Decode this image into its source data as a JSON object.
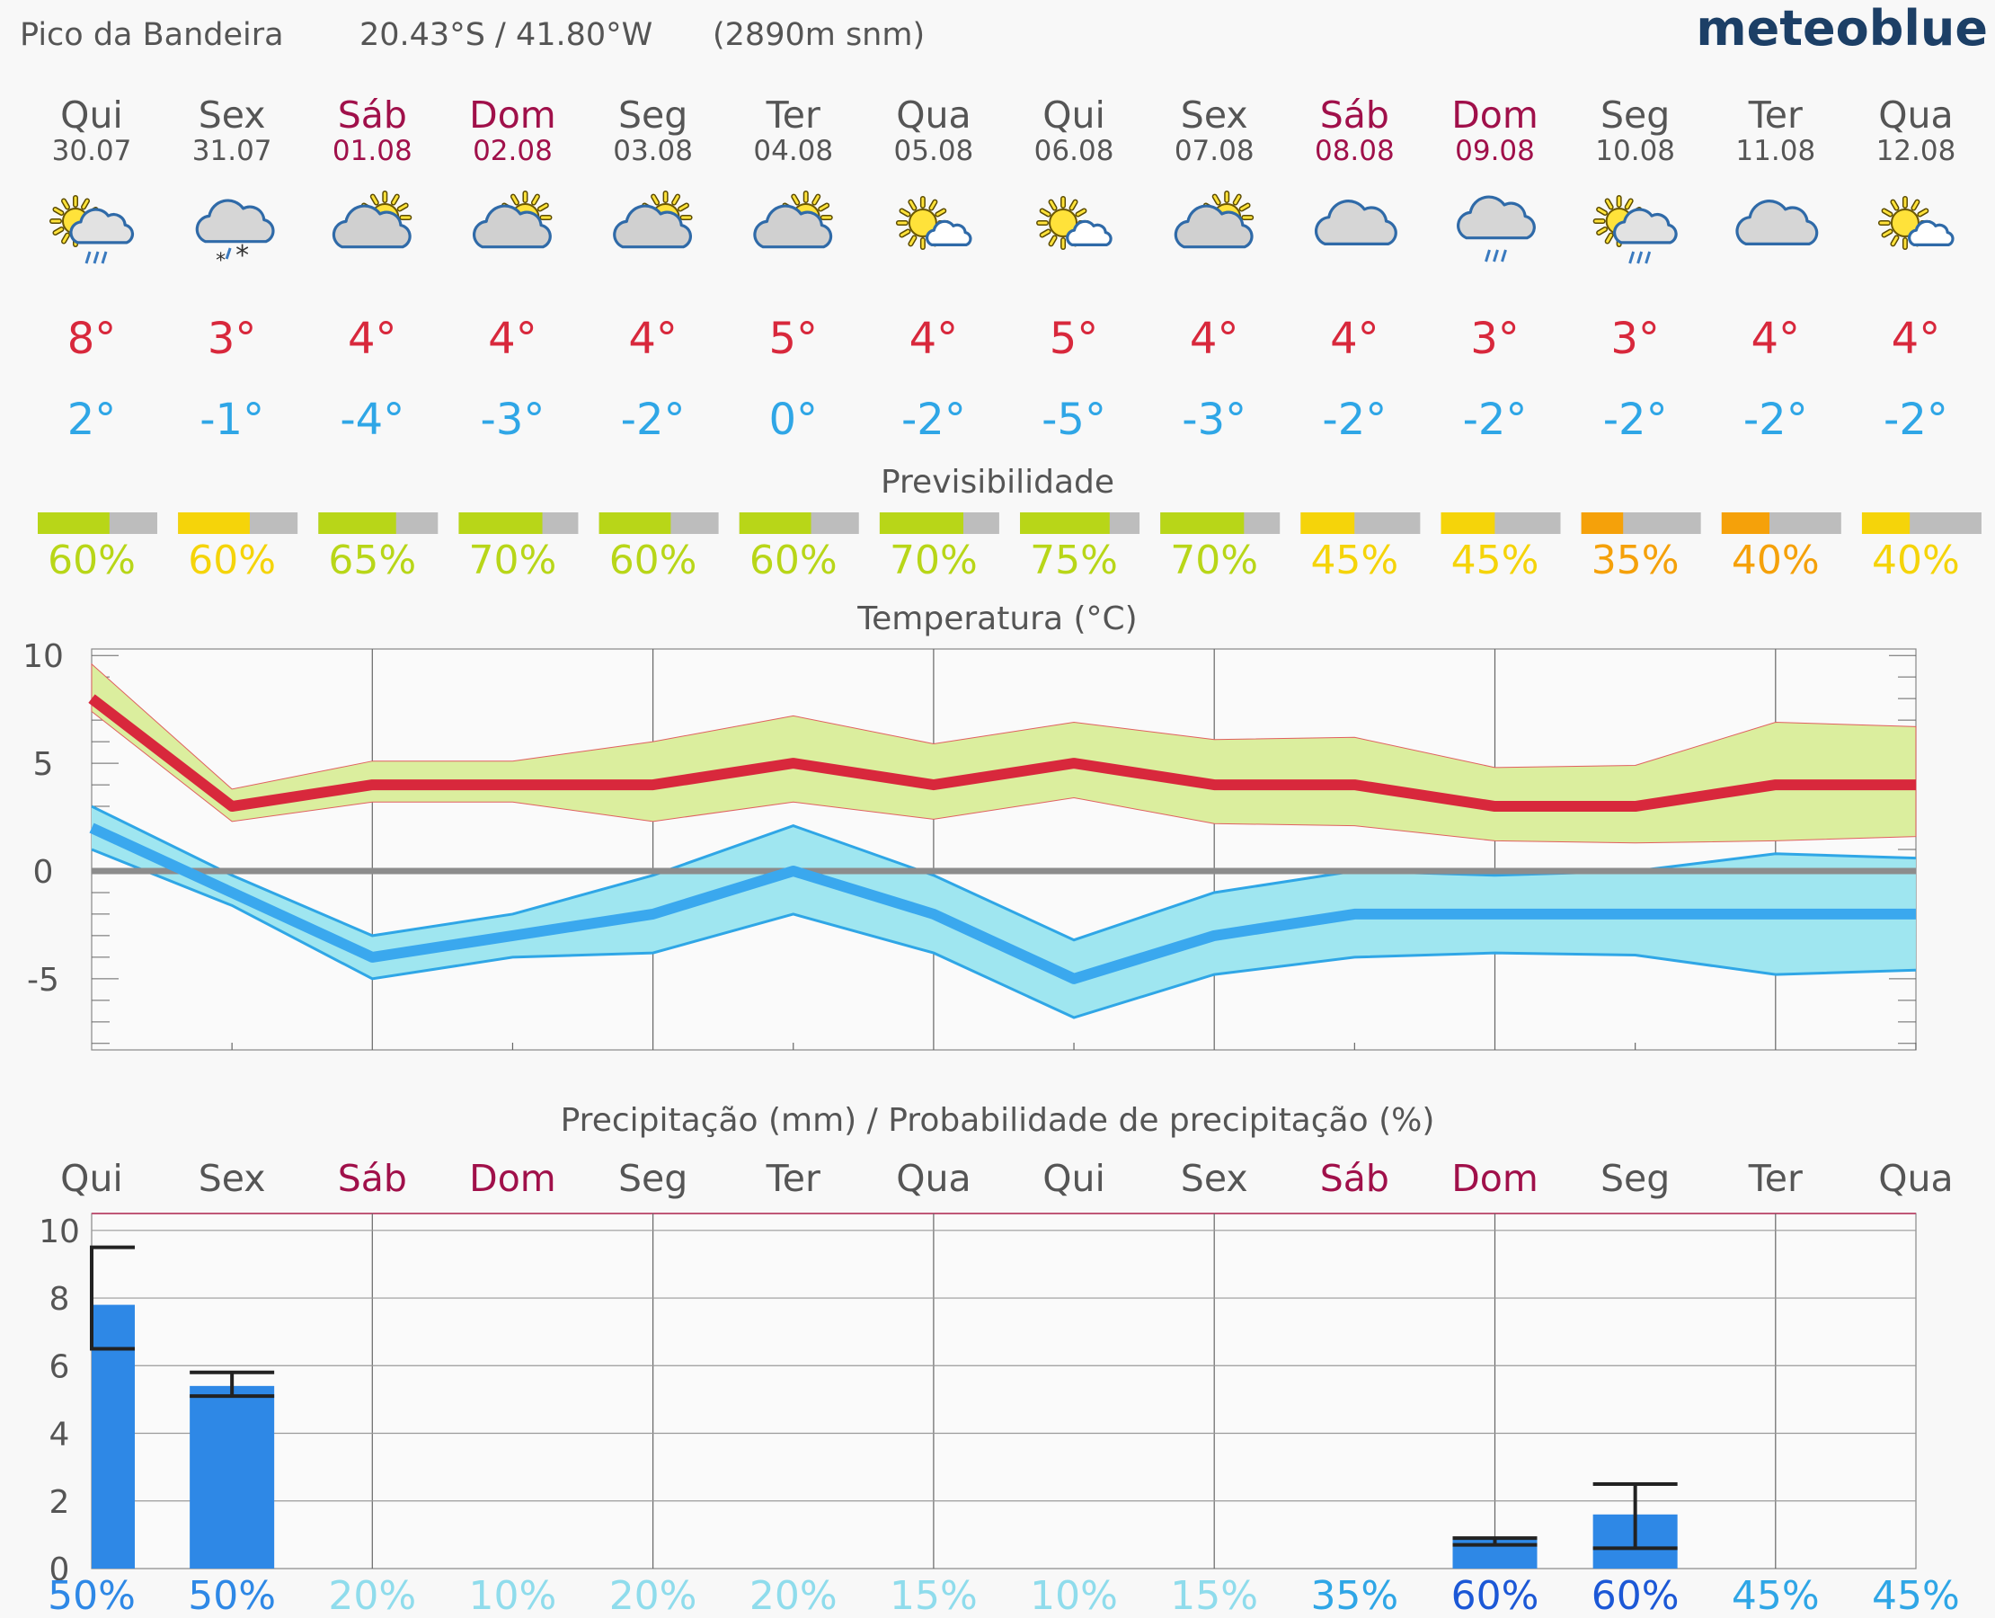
{
  "header": {
    "location": "Pico da Bandeira",
    "coordinates": "20.43°S / 41.80°W",
    "altitude": "(2890m snm)",
    "brand": "meteoblue"
  },
  "colors": {
    "weekday": "#555555",
    "weekend": "#a0104a",
    "temp_max": "#d8283c",
    "temp_min": "#2fa6e6",
    "precip_bar": "#2e88e6",
    "brand": "#1c3f66"
  },
  "days": [
    {
      "name": "Qui",
      "date": "30.07",
      "weekend": false,
      "icon": "sun-cloud-rain-icon",
      "tmax": "8°",
      "tmin": "2°"
    },
    {
      "name": "Sex",
      "date": "31.07",
      "weekend": false,
      "icon": "cloud-sleet-icon",
      "tmax": "3°",
      "tmin": "-1°"
    },
    {
      "name": "Sáb",
      "date": "01.08",
      "weekend": true,
      "icon": "sun-behind-cloud-icon",
      "tmax": "4°",
      "tmin": "-4°"
    },
    {
      "name": "Dom",
      "date": "02.08",
      "weekend": true,
      "icon": "sun-behind-cloud-icon",
      "tmax": "4°",
      "tmin": "-3°"
    },
    {
      "name": "Seg",
      "date": "03.08",
      "weekend": false,
      "icon": "sun-behind-cloud-icon",
      "tmax": "4°",
      "tmin": "-2°"
    },
    {
      "name": "Ter",
      "date": "04.08",
      "weekend": false,
      "icon": "sun-behind-cloud-icon",
      "tmax": "5°",
      "tmin": "0°"
    },
    {
      "name": "Qua",
      "date": "05.08",
      "weekend": false,
      "icon": "sun-small-cloud-icon",
      "tmax": "4°",
      "tmin": "-2°"
    },
    {
      "name": "Qui",
      "date": "06.08",
      "weekend": false,
      "icon": "sun-small-cloud-icon",
      "tmax": "5°",
      "tmin": "-5°"
    },
    {
      "name": "Sex",
      "date": "07.08",
      "weekend": false,
      "icon": "sun-behind-cloud-icon",
      "tmax": "4°",
      "tmin": "-3°"
    },
    {
      "name": "Sáb",
      "date": "08.08",
      "weekend": true,
      "icon": "cloud-icon",
      "tmax": "4°",
      "tmin": "-2°"
    },
    {
      "name": "Dom",
      "date": "09.08",
      "weekend": true,
      "icon": "cloud-rain-icon",
      "tmax": "3°",
      "tmin": "-2°"
    },
    {
      "name": "Seg",
      "date": "10.08",
      "weekend": false,
      "icon": "sun-cloud-rain-icon",
      "tmax": "3°",
      "tmin": "-2°"
    },
    {
      "name": "Ter",
      "date": "11.08",
      "weekend": false,
      "icon": "cloud-icon",
      "tmax": "4°",
      "tmin": "-2°"
    },
    {
      "name": "Qua",
      "date": "12.08",
      "weekend": false,
      "icon": "sun-small-cloud-icon",
      "tmax": "4°",
      "tmin": "-2°"
    }
  ],
  "predictability": {
    "title": "Previsibilidade",
    "values": [
      60,
      60,
      65,
      70,
      60,
      60,
      70,
      75,
      70,
      45,
      45,
      35,
      40,
      40
    ],
    "labels": [
      "60%",
      "60%",
      "65%",
      "70%",
      "60%",
      "60%",
      "70%",
      "75%",
      "70%",
      "45%",
      "45%",
      "35%",
      "40%",
      "40%"
    ],
    "colors": [
      "#b8d618",
      "#f5d40a",
      "#b8d618",
      "#b8d618",
      "#b8d618",
      "#b8d618",
      "#b8d618",
      "#b8d618",
      "#b8d618",
      "#f5d40a",
      "#f5d40a",
      "#f5a10a",
      "#f5a10a",
      "#f5d40a"
    ]
  },
  "chart_data": [
    {
      "type": "line",
      "title": "Temperatura (°C)",
      "ylim": [
        -8.3,
        10.3
      ],
      "yticks": [
        10,
        5,
        0,
        -5
      ],
      "ytick_labels": [
        "10",
        "5",
        "0",
        "-5"
      ],
      "grid": true,
      "series": [
        {
          "values": [
            8,
            3,
            4,
            4,
            4,
            5,
            4,
            5,
            4,
            4,
            3,
            3,
            4,
            4
          ],
          "band_upper": [
            9.6,
            3.8,
            5.1,
            5.1,
            6.0,
            7.2,
            5.9,
            6.9,
            6.1,
            6.2,
            4.8,
            4.9,
            6.9,
            6.7
          ],
          "band_lower": [
            7.4,
            2.3,
            3.2,
            3.2,
            2.3,
            3.2,
            2.4,
            3.4,
            2.2,
            2.1,
            1.4,
            1.3,
            1.4,
            1.6
          ]
        },
        {
          "values": [
            2,
            -1,
            -4,
            -3,
            -2,
            0,
            -2,
            -5,
            -3,
            -2,
            -2,
            -2,
            -2,
            -2
          ],
          "band_upper": [
            3.0,
            -0.2,
            -3.0,
            -2.0,
            -0.2,
            2.1,
            -0.2,
            -3.2,
            -1.0,
            0.0,
            -0.2,
            0.0,
            0.8,
            0.6
          ],
          "band_lower": [
            1.0,
            -1.6,
            -5.0,
            -4.0,
            -3.8,
            -2.0,
            -3.8,
            -6.8,
            -4.8,
            -4.0,
            -3.8,
            -3.9,
            -4.8,
            -4.6
          ]
        }
      ]
    },
    {
      "type": "bar",
      "title": "Precipitação (mm) / Probabilidade de precipitação (%)",
      "categories": [
        "Qui",
        "Sex",
        "Sáb",
        "Dom",
        "Seg",
        "Ter",
        "Qua",
        "Qui",
        "Sex",
        "Sáb",
        "Dom",
        "Seg",
        "Ter",
        "Qua"
      ],
      "values": [
        7.8,
        5.4,
        0,
        0,
        0,
        0,
        0,
        0,
        0,
        0,
        0.9,
        1.6,
        0,
        0
      ],
      "range_low": [
        6.5,
        5.1,
        null,
        null,
        null,
        null,
        null,
        null,
        null,
        null,
        0.7,
        0.6,
        null,
        null
      ],
      "range_high": [
        9.5,
        5.8,
        null,
        null,
        null,
        null,
        null,
        null,
        null,
        null,
        0.9,
        2.5,
        null,
        null
      ],
      "ylim": [
        0,
        10.5
      ],
      "yticks": [
        0,
        2,
        4,
        6,
        8,
        10
      ],
      "ytick_labels": [
        "0",
        "2",
        "4",
        "6",
        "8",
        "10"
      ],
      "probability": [
        "50%",
        "50%",
        "20%",
        "10%",
        "20%",
        "20%",
        "15%",
        "10%",
        "15%",
        "35%",
        "60%",
        "60%",
        "45%",
        "45%"
      ],
      "probability_colors": [
        "#2e88e6",
        "#2e88e6",
        "#8fdcec",
        "#8fdcec",
        "#8fdcec",
        "#8fdcec",
        "#8fdcec",
        "#8fdcec",
        "#8fdcec",
        "#2fa6e6",
        "#1c58d6",
        "#1c58d6",
        "#2fa6e6",
        "#2fa6e6"
      ],
      "grid": true
    }
  ]
}
